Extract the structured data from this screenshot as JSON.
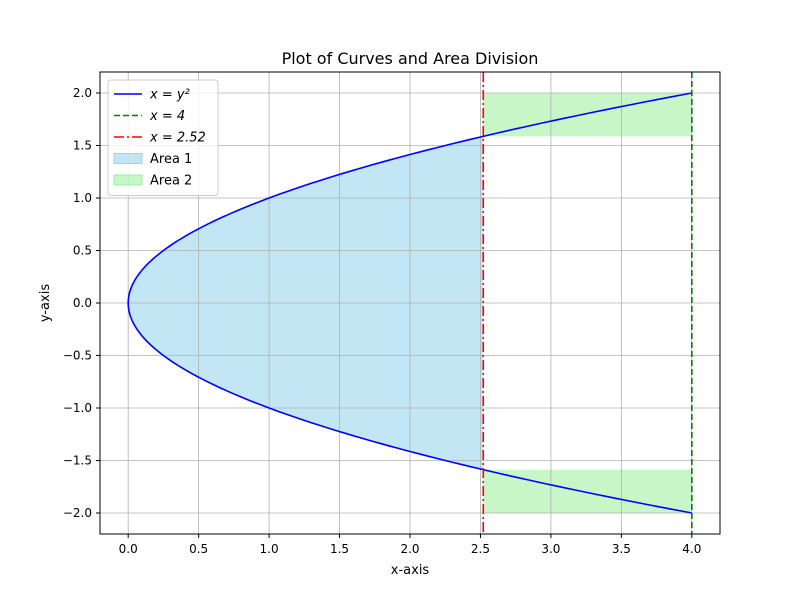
{
  "chart_data": {
    "type": "line",
    "title": "Plot of Curves and Area Division",
    "xlabel": "x-axis",
    "ylabel": "y-axis",
    "xlim": [
      -0.2,
      4.2
    ],
    "ylim": [
      -2.2,
      2.2
    ],
    "grid": true,
    "legend_position": "upper-left",
    "x_ticks": [
      0.0,
      0.5,
      1.0,
      1.5,
      2.0,
      2.5,
      3.0,
      3.5,
      4.0
    ],
    "x_tick_labels": [
      "0.0",
      "0.5",
      "1.0",
      "1.5",
      "2.0",
      "2.5",
      "3.0",
      "3.5",
      "4.0"
    ],
    "y_ticks": [
      2.0,
      1.5,
      1.0,
      0.5,
      0.0,
      -0.5,
      -1.0,
      -1.5,
      -2.0
    ],
    "y_tick_labels": [
      "2.0",
      "1.5",
      "1.0",
      "0.5",
      "0.0",
      "−0.5",
      "−1.0",
      "−1.5",
      "−2.0"
    ],
    "series": [
      {
        "name": "x = y²",
        "kind": "curve",
        "equation": "x = y^2",
        "y_range": [
          -2,
          2
        ],
        "color": "#0000ff",
        "style": "solid"
      },
      {
        "name": "x = 4",
        "kind": "vline",
        "x": 4,
        "color": "#008000",
        "style": "dashed"
      },
      {
        "name": "x = 2.52",
        "kind": "vline",
        "x": 2.52,
        "color": "#ff0000",
        "style": "dashdot"
      }
    ],
    "areas": [
      {
        "name": "Area 1",
        "color": "#87ceeb",
        "alpha": 0.5,
        "description": "between curve x = y² and x = 2.52",
        "x_range": [
          0,
          2.52
        ],
        "y_range": [
          -1.587,
          1.587
        ]
      },
      {
        "name": "Area 2",
        "color": "#90ee90",
        "alpha": 0.5,
        "description": "between x = 2.52 and x = 4",
        "regions": [
          {
            "x_range": [
              2.52,
              4.0
            ],
            "y_range": [
              1.587,
              2.0
            ]
          },
          {
            "x_range": [
              2.52,
              4.0
            ],
            "y_range": [
              -2.0,
              -1.587
            ]
          }
        ]
      }
    ],
    "legend": [
      {
        "label": "x = y²",
        "type": "line",
        "color": "#0000ff",
        "style": "solid"
      },
      {
        "label": "x = 4",
        "type": "line",
        "color": "#008000",
        "style": "dashed"
      },
      {
        "label": "x = 2.52",
        "type": "line",
        "color": "#ff0000",
        "style": "dashdot"
      },
      {
        "label": "Area 1",
        "type": "patch",
        "color": "#87ceeb"
      },
      {
        "label": "Area 2",
        "type": "patch",
        "color": "#90ee90"
      }
    ]
  }
}
